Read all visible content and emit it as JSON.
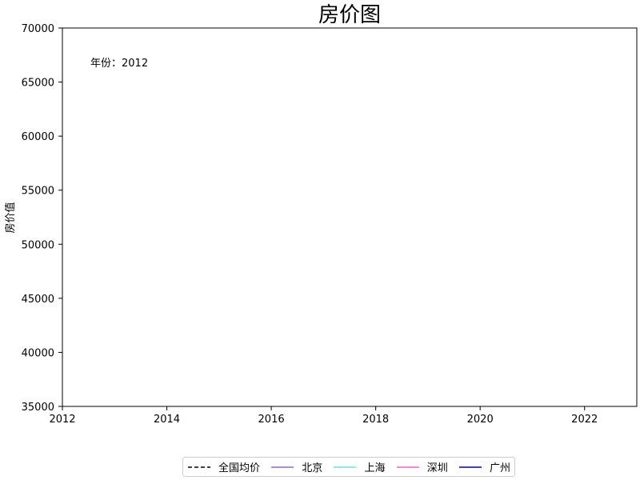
{
  "chart_data": {
    "type": "line",
    "title": "房价图",
    "xlabel": "",
    "ylabel": "房价值",
    "xlim": [
      2012,
      2023
    ],
    "ylim": [
      35000,
      70000
    ],
    "x_ticks": [
      "2012",
      "2014",
      "2016",
      "2018",
      "2020",
      "2022"
    ],
    "y_ticks": [
      "35000",
      "40000",
      "45000",
      "50000",
      "55000",
      "60000",
      "65000",
      "70000"
    ],
    "annotation": "年份：2012",
    "grid": false,
    "legend_position": "bottom-center",
    "series": [
      {
        "name": "全国均价",
        "color": "#000000",
        "style": "dashed",
        "x": [],
        "y": []
      },
      {
        "name": "北京",
        "color": "#9966cc",
        "style": "solid",
        "x": [],
        "y": []
      },
      {
        "name": "上海",
        "color": "#66ddee",
        "style": "solid",
        "x": [],
        "y": []
      },
      {
        "name": "深圳",
        "color": "#ee66cc",
        "style": "solid",
        "x": [],
        "y": []
      },
      {
        "name": "广州",
        "color": "#0000aa",
        "style": "solid",
        "x": [],
        "y": []
      }
    ]
  }
}
